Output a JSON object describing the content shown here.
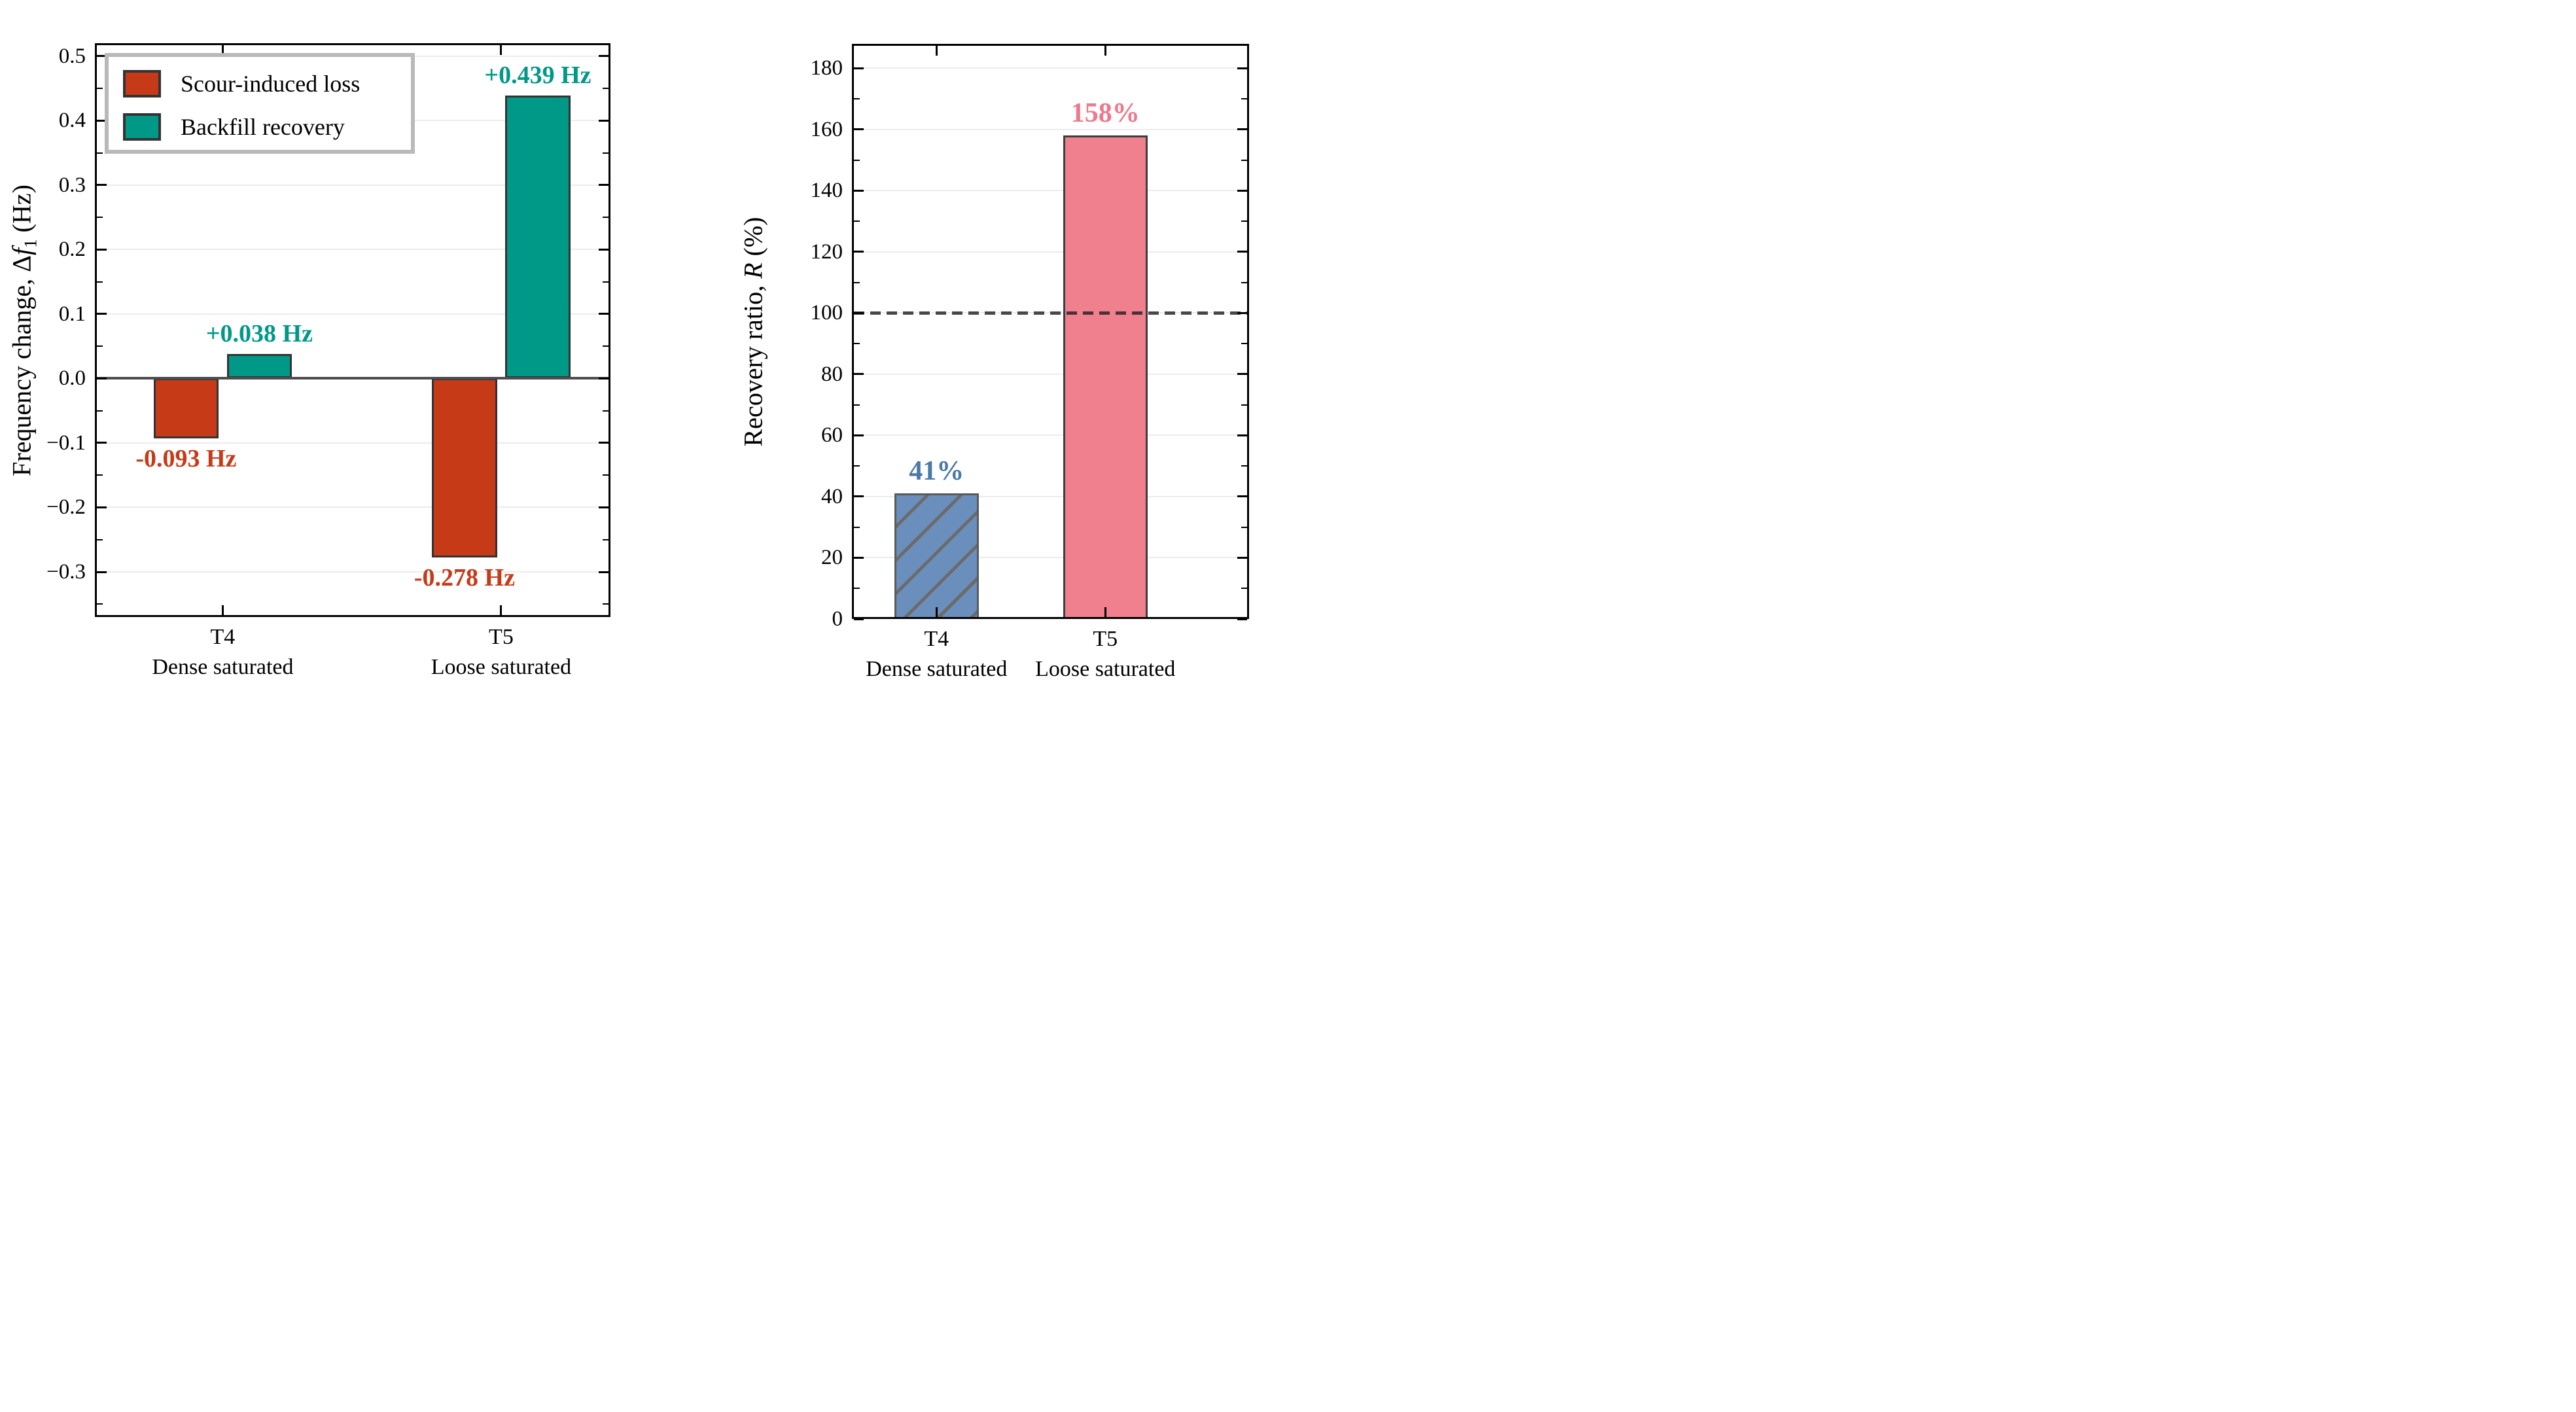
{
  "figure": {
    "background": "#ffffff"
  },
  "chart_data": [
    {
      "type": "bar",
      "panel": "left",
      "title": "",
      "xlabel": "",
      "ylabel": {
        "prefix": "Frequency change, Δ",
        "italic": "f",
        "subscript": "1",
        "suffix": " (Hz)"
      },
      "ylim": [
        -0.37,
        0.52
      ],
      "grid": "horizontal",
      "zero_line": true,
      "legend_position": "upper left",
      "yticks": [
        {
          "v": 0.5,
          "label": "0.5"
        },
        {
          "v": 0.4,
          "label": "0.4"
        },
        {
          "v": 0.3,
          "label": "0.3"
        },
        {
          "v": 0.2,
          "label": "0.2"
        },
        {
          "v": 0.1,
          "label": "0.1"
        },
        {
          "v": 0.0,
          "label": "0.0"
        },
        {
          "v": -0.1,
          "label": "−0.1"
        },
        {
          "v": -0.2,
          "label": "−0.2"
        },
        {
          "v": -0.3,
          "label": "−0.3"
        }
      ],
      "yminor": [
        0.45,
        0.35,
        0.25,
        0.15,
        0.05,
        -0.05,
        -0.15,
        -0.25,
        -0.35
      ],
      "categories": [
        {
          "tick": "T4",
          "subtitle": "Dense saturated"
        },
        {
          "tick": "T5",
          "subtitle": "Loose saturated"
        }
      ],
      "series": [
        {
          "name": "Scour-induced loss",
          "color": "#c63a18",
          "edge_color": "#333333",
          "values": [
            -0.093,
            -0.278
          ],
          "value_labels": [
            "-0.093 Hz",
            "-0.278 Hz"
          ],
          "label_color": "#c63a18"
        },
        {
          "name": "Backfill recovery",
          "color": "#009988",
          "edge_color": "#333333",
          "values": [
            0.038,
            0.439
          ],
          "value_labels": [
            "+0.038 Hz",
            "+0.439 Hz"
          ],
          "label_color": "#009988"
        }
      ]
    },
    {
      "type": "bar",
      "panel": "right",
      "title": "",
      "xlabel": "",
      "ylabel": {
        "prefix": "Recovery ratio, ",
        "italic": "R",
        "subscript": "",
        "suffix": " (%)"
      },
      "ylim": [
        0,
        188
      ],
      "grid": "horizontal",
      "zero_line": false,
      "reference_line": {
        "value": 100,
        "style": "dashed",
        "color": "#222222"
      },
      "yticks": [
        {
          "v": 180,
          "label": "180"
        },
        {
          "v": 160,
          "label": "160"
        },
        {
          "v": 140,
          "label": "140"
        },
        {
          "v": 120,
          "label": "120"
        },
        {
          "v": 100,
          "label": "100"
        },
        {
          "v": 80,
          "label": "80"
        },
        {
          "v": 60,
          "label": "60"
        },
        {
          "v": 40,
          "label": "40"
        },
        {
          "v": 20,
          "label": "20"
        },
        {
          "v": 0,
          "label": "0"
        }
      ],
      "yminor": [
        170,
        150,
        130,
        110,
        90,
        70,
        50,
        30,
        10
      ],
      "categories": [
        {
          "tick": "T4",
          "subtitle": "Dense saturated"
        },
        {
          "tick": "T5",
          "subtitle": "Loose saturated"
        }
      ],
      "series": [
        {
          "name": "Recovery ratio",
          "values": [
            41,
            158
          ],
          "value_labels": [
            "41%",
            "158%"
          ],
          "bar_colors": [
            "#6b8fbd",
            "#f0808e"
          ],
          "edge_colors": [
            "#5a5a5a",
            "#3d3d3d"
          ],
          "label_colors": [
            "#4a79a8",
            "#f0788c"
          ],
          "hatched": [
            true,
            false
          ]
        }
      ]
    }
  ]
}
